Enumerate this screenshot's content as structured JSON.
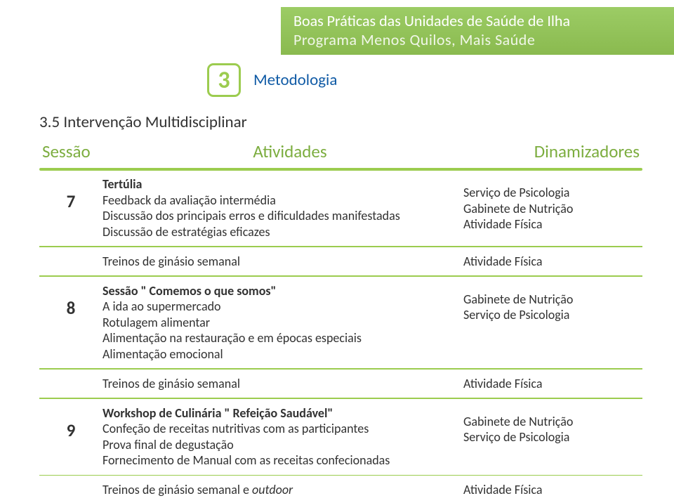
{
  "colors": {
    "green": "#9ccc4f",
    "green_text": "#7cad3f",
    "blue": "#0f5aa5",
    "text": "#323232",
    "white": "#ffffff"
  },
  "header": {
    "line1": "Boas Práticas das Unidades de Saúde de Ilha",
    "line2": "Programa  Menos Quilos, Mais Saúde"
  },
  "section": {
    "number": "3",
    "title": "Metodologia"
  },
  "subtitle": "3.5 Intervenção Multidisciplinar",
  "table": {
    "headers": {
      "sessao": "Sessão",
      "atividades": "Atividades",
      "dinamizadores": "Dinamizadores"
    },
    "rows": [
      {
        "num": "7",
        "atividades_bold": "Tertúlia",
        "atividades_rest": "Feedback da avaliação intermédia\nDiscussão dos principais erros e dificuldades manifestadas\nDiscussão de estratégias eficazes",
        "dinamizadores": "Serviço de Psicologia\nGabinete de Nutrição\nAtividade Física"
      },
      {
        "plain": true,
        "atividades_plain": "Treinos de ginásio semanal",
        "dinamizadores": "Atividade Física"
      },
      {
        "num": "8",
        "atividades_boldline": "Sessão \" Comemos o que somos\"",
        "atividades_rest": "A ida ao supermercado\nRotulagem alimentar\nAlimentação na restauração e em épocas especiais\nAlimentação emocional",
        "dinamizadores": "Gabinete de Nutrição\nServiço de Psicologia"
      },
      {
        "plain": true,
        "atividades_plain": "Treinos de ginásio semanal",
        "dinamizadores": "Atividade Física"
      },
      {
        "num": "9",
        "atividades_boldline": "Workshop de Culinária \" Refeição Saudável\"",
        "atividades_rest": "Confeção de receitas nutritivas com as participantes\nProva final de degustação\nFornecimento de Manual com as receitas confecionadas",
        "dinamizadores": "Gabinete de Nutrição\nServiço de Psicologia"
      },
      {
        "plain": true,
        "atividades_plain_mixed": {
          "pre": "Treinos de ginásio semanal e ",
          "italic": "outdoor"
        },
        "dinamizadores": "Atividade Física"
      }
    ]
  }
}
